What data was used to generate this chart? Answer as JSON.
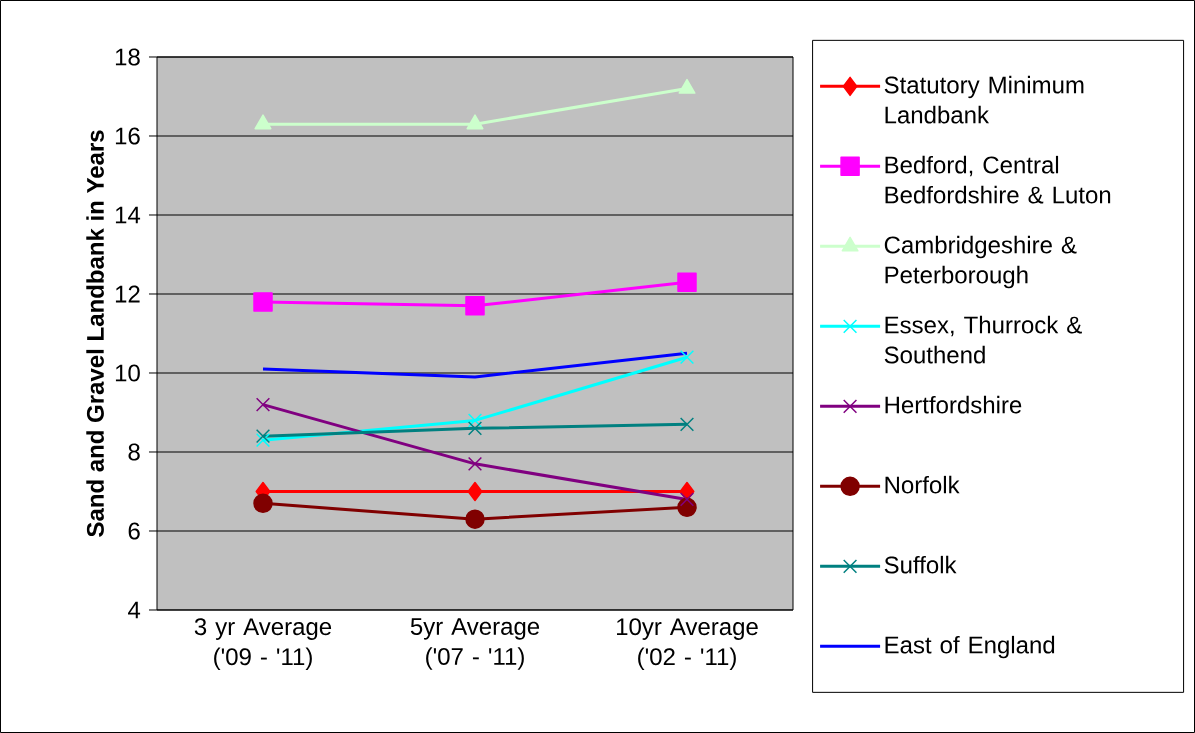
{
  "chart_data": {
    "type": "line",
    "ylabel": "Sand and Gravel Landbank in Years",
    "categories": [
      "3 yr Average ('09 - '11)",
      "5yr Average ('07 - '11)",
      "10yr Average ('02 - '11)"
    ],
    "series": [
      {
        "name": "Statutory Minimum Landbank",
        "color": "#ff0000",
        "marker": "diamond",
        "values": [
          7,
          7,
          7
        ]
      },
      {
        "name": "Bedford, Central Bedfordshire & Luton",
        "color": "#ff00ff",
        "marker": "square",
        "values": [
          11.8,
          11.7,
          12.3
        ]
      },
      {
        "name": "Cambridgeshire & Peterborough",
        "color": "#ccffcc",
        "marker": "triangle",
        "values": [
          16.3,
          16.3,
          17.2
        ]
      },
      {
        "name": "Essex, Thurrock & Southend",
        "color": "#00ffff",
        "marker": "cross",
        "values": [
          8.3,
          8.8,
          10.4
        ]
      },
      {
        "name": "Hertfordshire",
        "color": "#800080",
        "marker": "cross",
        "values": [
          9.2,
          7.7,
          6.8
        ]
      },
      {
        "name": "Norfolk",
        "color": "#800000",
        "marker": "circle",
        "values": [
          6.7,
          6.3,
          6.6
        ]
      },
      {
        "name": "Suffolk",
        "color": "#008080",
        "marker": "cross",
        "values": [
          8.4,
          8.6,
          8.7
        ]
      },
      {
        "name": "East of England",
        "color": "#0000ff",
        "marker": "none",
        "values": [
          10.1,
          9.9,
          10.5
        ]
      }
    ],
    "ylim": [
      4,
      18
    ],
    "yticks": [
      4,
      6,
      8,
      10,
      12,
      14,
      16,
      18
    ],
    "grid": "y",
    "legend": "right"
  }
}
